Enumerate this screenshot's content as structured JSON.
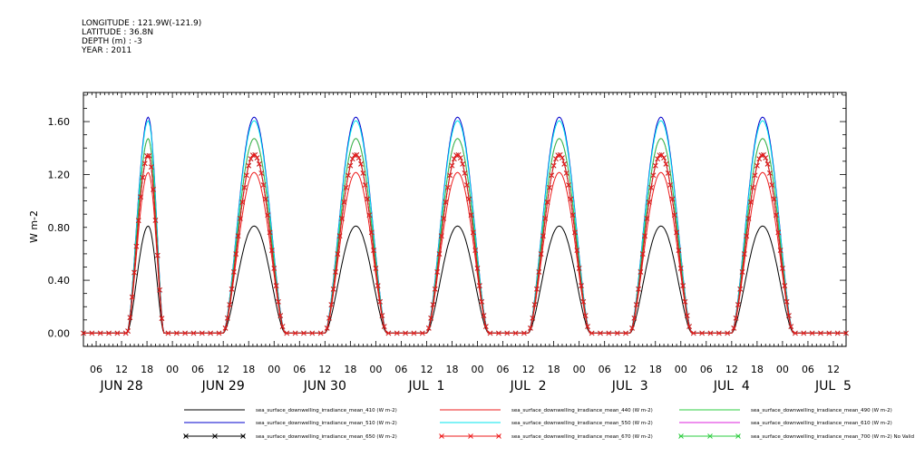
{
  "header": {
    "lines": [
      "LONGITUDE : 121.9W(-121.9)",
      "LATITUDE : 36.8N",
      "DEPTH (m) : -3",
      "YEAR : 2011"
    ]
  },
  "chart_data": {
    "type": "line",
    "title": "",
    "ylabel": "W m-2",
    "xlabel": "",
    "ylim": [
      -0.1,
      1.82
    ],
    "xlim_hours": [
      3,
      183
    ],
    "y_ticks": [
      0.0,
      0.4,
      0.8,
      1.2,
      1.6
    ],
    "y_tick_labels": [
      "0.00",
      "0.40",
      "0.80",
      "1.20",
      "1.60"
    ],
    "x_hour_ticks": [
      {
        "h": 6,
        "label": "06"
      },
      {
        "h": 12,
        "label": "12"
      },
      {
        "h": 18,
        "label": "18"
      },
      {
        "h": 24,
        "label": "00"
      },
      {
        "h": 30,
        "label": "06"
      },
      {
        "h": 36,
        "label": "12"
      },
      {
        "h": 42,
        "label": "18"
      },
      {
        "h": 48,
        "label": "00"
      },
      {
        "h": 54,
        "label": "06"
      },
      {
        "h": 60,
        "label": "12"
      },
      {
        "h": 66,
        "label": "18"
      },
      {
        "h": 72,
        "label": "00"
      },
      {
        "h": 78,
        "label": "06"
      },
      {
        "h": 84,
        "label": "12"
      },
      {
        "h": 90,
        "label": "18"
      },
      {
        "h": 96,
        "label": "00"
      },
      {
        "h": 102,
        "label": "06"
      },
      {
        "h": 108,
        "label": "12"
      },
      {
        "h": 114,
        "label": "18"
      },
      {
        "h": 120,
        "label": "00"
      },
      {
        "h": 126,
        "label": "06"
      },
      {
        "h": 132,
        "label": "12"
      },
      {
        "h": 138,
        "label": "18"
      },
      {
        "h": 144,
        "label": "00"
      },
      {
        "h": 150,
        "label": "06"
      },
      {
        "h": 156,
        "label": "12"
      },
      {
        "h": 162,
        "label": "18"
      },
      {
        "h": 168,
        "label": "00"
      },
      {
        "h": 174,
        "label": "06"
      },
      {
        "h": 180,
        "label": "12"
      }
    ],
    "x_day_labels": [
      {
        "h": 12,
        "label": "JUN 28"
      },
      {
        "h": 36,
        "label": "JUN 29"
      },
      {
        "h": 60,
        "label": "JUN 30"
      },
      {
        "h": 84,
        "label": "JUL  1"
      },
      {
        "h": 108,
        "label": "JUL  2"
      },
      {
        "h": 132,
        "label": "JUL  3"
      },
      {
        "h": 156,
        "label": "JUL  4"
      },
      {
        "h": 180,
        "label": "JUL  5"
      }
    ],
    "days": [
      {
        "day": "JUN 28",
        "start_h": 13.3,
        "end_h": 22.0,
        "peak_h": 18.3,
        "peak_black": 1.35,
        "partial": true
      },
      {
        "day": "JUN 29",
        "start_h": 36.0,
        "end_h": 50.6,
        "peak_h": 43.3,
        "peak_black": 1.35
      },
      {
        "day": "JUN 30",
        "start_h": 60.0,
        "end_h": 74.6,
        "peak_h": 67.3,
        "peak_black": 1.35
      },
      {
        "day": "JUL 1",
        "start_h": 84.0,
        "end_h": 98.6,
        "peak_h": 91.3,
        "peak_black": 1.35
      },
      {
        "day": "JUL 2",
        "start_h": 108.0,
        "end_h": 122.6,
        "peak_h": 115.3,
        "peak_black": 1.35
      },
      {
        "day": "JUL 3",
        "start_h": 132.0,
        "end_h": 146.6,
        "peak_h": 139.3,
        "peak_black": 1.35
      },
      {
        "day": "JUL 4",
        "start_h": 156.0,
        "end_h": 170.6,
        "peak_h": 163.3,
        "peak_black": 1.35
      }
    ],
    "series": [
      {
        "name": "sea_surface_downwelling_irradiance_mean_410 (W m-2)",
        "color": "#000000",
        "marker": "none",
        "scale": 0.6
      },
      {
        "name": "sea_surface_downwelling_irradiance_mean_440 (W m-2)",
        "color": "#ee1c1c",
        "marker": "none",
        "scale": 0.9
      },
      {
        "name": "sea_surface_downwelling_irradiance_mean_490 (W m-2)",
        "color": "#2ecc40",
        "marker": "none",
        "scale": 1.09
      },
      {
        "name": "sea_surface_downwelling_irradiance_mean_510 (W m-2)",
        "color": "#0000cc",
        "marker": "none",
        "scale": 1.21
      },
      {
        "name": "sea_surface_downwelling_irradiance_mean_550 (W m-2)",
        "color": "#00e5ee",
        "marker": "none",
        "scale": 1.19
      },
      {
        "name": "sea_surface_downwelling_irradiance_mean_610 (W m-2)",
        "color": "#dd22dd",
        "marker": "none",
        "scale": 1.09
      },
      {
        "name": "sea_surface_downwelling_irradiance_mean_650 (W m-2)",
        "color": "#000000",
        "marker": "x",
        "scale": 1.0
      },
      {
        "name": "sea_surface_downwelling_irradiance_mean_670 (W m-2)",
        "color": "#ee1c1c",
        "marker": "x",
        "scale": 1.0
      },
      {
        "name": "sea_surface_downwelling_irradiance_mean_700 (W m-2) No Valid Data",
        "color": "#2ecc40",
        "marker": "x",
        "scale": 0
      }
    ]
  }
}
